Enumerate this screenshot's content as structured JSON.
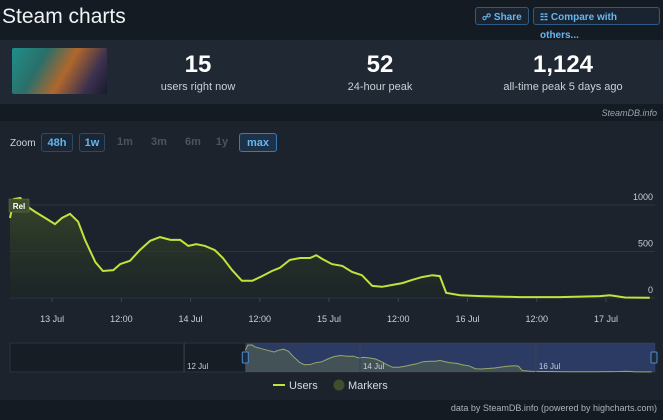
{
  "header": {
    "title": "Steam charts",
    "buttons": [
      "Share",
      "Compare with others..."
    ]
  },
  "stats": [
    {
      "value": "15",
      "label": "users right now"
    },
    {
      "value": "52",
      "label": "24-hour peak"
    },
    {
      "value": "1,124",
      "label": "all-time peak 5 days ago"
    }
  ],
  "source": "SteamDB.info",
  "zoom": {
    "label": "Zoom",
    "options": [
      "48h",
      "1w",
      "1m",
      "3m",
      "6m",
      "1y",
      "max"
    ],
    "enabled": [
      true,
      true,
      false,
      false,
      false,
      false,
      true
    ],
    "selected": 6
  },
  "chart_data": {
    "type": "line",
    "x": [
      -7.3,
      -6.6,
      -5.5,
      -4.7,
      -2.9,
      -1.2,
      0.5,
      1.7,
      3.1,
      4.5,
      5.7,
      7.5,
      8.8,
      10.6,
      11.8,
      13.5,
      15.2,
      17.0,
      18.7,
      20.5,
      22.2,
      23.6,
      25.0,
      26.5,
      28.2,
      29.6,
      31.2,
      32.9,
      34.7,
      36.4,
      38.1,
      39.5,
      41.2,
      43.0,
      44.7,
      45.8,
      46.8,
      48.5,
      50.3,
      52.0,
      53.7,
      55.5,
      57.2,
      58.9,
      60.7,
      62.4,
      64.1,
      65.9,
      67.2,
      68.3,
      70.7,
      74.2,
      81.1,
      88.0,
      95.0,
      96.7,
      99.3,
      103.6
    ],
    "series": [
      {
        "name": "Users",
        "color": "#c2e33c",
        "values": [
          860,
          1065,
          1075,
          1000,
          925,
          860,
          795,
          860,
          905,
          820,
          625,
          385,
          290,
          300,
          365,
          400,
          515,
          615,
          655,
          625,
          625,
          560,
          580,
          560,
          515,
          430,
          300,
          185,
          185,
          235,
          290,
          325,
          410,
          430,
          430,
          460,
          420,
          365,
          345,
          280,
          245,
          130,
          120,
          140,
          160,
          195,
          225,
          245,
          235,
          55,
          30,
          20,
          10,
          10,
          20,
          30,
          5,
          3
        ]
      }
    ],
    "xlim": [
      -7.3,
      104.5
    ],
    "ylim": [
      0,
      1400
    ],
    "xticks": [
      {
        "value": 0,
        "label": "13 Jul"
      },
      {
        "value": 12,
        "label": "12:00"
      },
      {
        "value": 24,
        "label": "14 Jul"
      },
      {
        "value": 36,
        "label": "12:00"
      },
      {
        "value": 48,
        "label": "15 Jul"
      },
      {
        "value": 60,
        "label": "12:00"
      },
      {
        "value": 72,
        "label": "16 Jul"
      },
      {
        "value": 84,
        "label": "12:00"
      },
      {
        "value": 96,
        "label": "17 Jul"
      }
    ],
    "yticks": [
      0,
      500,
      1000
    ],
    "grid": true,
    "markers": {
      "name": "Markers",
      "color": "#3f4f2e",
      "items": [
        {
          "text": "Rel",
          "x": -6.6
        }
      ]
    },
    "navigator": {
      "xlim": [
        -71.5,
        104.5
      ],
      "ylim": [
        0,
        1150
      ],
      "xticks": [
        {
          "value": -24,
          "label": "12 Jul"
        },
        {
          "value": 24,
          "label": "14 Jul"
        },
        {
          "value": 72,
          "label": "16 Jul"
        }
      ]
    }
  },
  "footer": "data by SteamDB.info (powered by highcharts.com)"
}
